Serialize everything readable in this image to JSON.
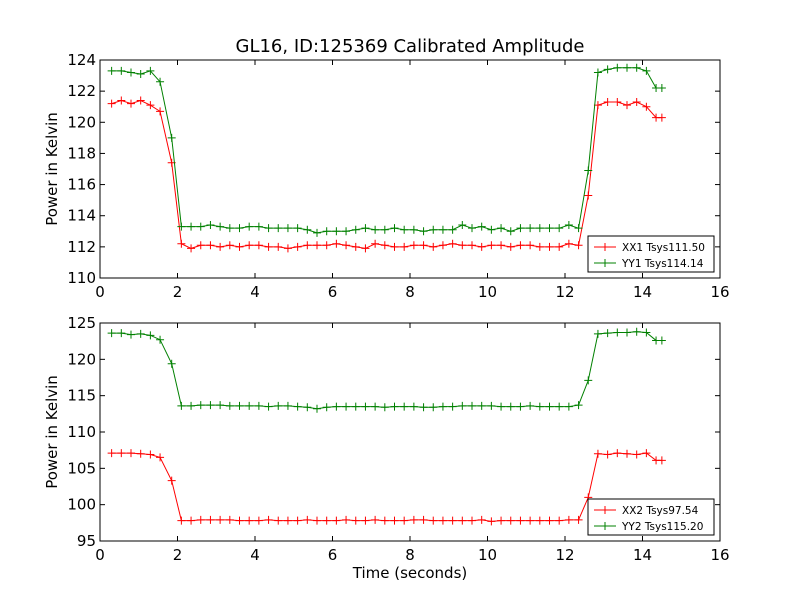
{
  "title": "GL16, ID:125369 Calibrated Amplitude",
  "chart_data": [
    {
      "type": "line",
      "ylabel": "Power in Kelvin",
      "xlabel": "",
      "xlim": [
        0,
        16
      ],
      "ylim": [
        110,
        124
      ],
      "xticks": [
        0,
        2,
        4,
        6,
        8,
        10,
        12,
        14,
        16
      ],
      "yticks": [
        110,
        112,
        114,
        116,
        118,
        120,
        122,
        124
      ],
      "legend_position": "lower-right",
      "x": [
        0.3,
        0.55,
        0.8,
        1.05,
        1.3,
        1.55,
        1.85,
        2.1,
        2.35,
        2.6,
        2.85,
        3.1,
        3.35,
        3.6,
        3.85,
        4.1,
        4.35,
        4.6,
        4.85,
        5.1,
        5.35,
        5.6,
        5.85,
        6.1,
        6.35,
        6.6,
        6.85,
        7.1,
        7.35,
        7.6,
        7.85,
        8.1,
        8.35,
        8.6,
        8.85,
        9.1,
        9.35,
        9.6,
        9.85,
        10.1,
        10.35,
        10.6,
        10.85,
        11.1,
        11.35,
        11.6,
        11.85,
        12.1,
        12.35,
        12.6,
        12.85,
        13.1,
        13.35,
        13.6,
        13.85,
        14.1,
        14.35,
        14.5
      ],
      "series": [
        {
          "name": "XX1 Tsys111.50",
          "color": "#ff0000",
          "values": [
            121.2,
            121.4,
            121.2,
            121.4,
            121.1,
            120.7,
            117.4,
            112.2,
            111.9,
            112.1,
            112.1,
            112.0,
            112.1,
            112.0,
            112.1,
            112.1,
            112.0,
            112.0,
            111.9,
            112.0,
            112.1,
            112.1,
            112.1,
            112.2,
            112.1,
            112.0,
            111.9,
            112.2,
            112.1,
            112.0,
            112.0,
            112.1,
            112.1,
            112.0,
            112.1,
            112.2,
            112.1,
            112.1,
            112.0,
            112.1,
            112.1,
            112.0,
            112.1,
            112.1,
            112.0,
            112.0,
            112.0,
            112.2,
            112.1,
            115.3,
            121.1,
            121.3,
            121.3,
            121.1,
            121.3,
            121.0,
            120.3,
            120.3
          ]
        },
        {
          "name": "YY1 Tsys114.14",
          "color": "#008000",
          "values": [
            123.3,
            123.3,
            123.2,
            123.1,
            123.3,
            122.6,
            119.0,
            113.3,
            113.3,
            113.3,
            113.4,
            113.3,
            113.2,
            113.2,
            113.3,
            113.3,
            113.2,
            113.2,
            113.2,
            113.2,
            113.1,
            112.9,
            113.0,
            113.0,
            113.0,
            113.1,
            113.2,
            113.1,
            113.1,
            113.2,
            113.1,
            113.1,
            113.0,
            113.1,
            113.1,
            113.1,
            113.4,
            113.2,
            113.3,
            113.1,
            113.2,
            113.0,
            113.2,
            113.2,
            113.2,
            113.2,
            113.2,
            113.4,
            113.2,
            116.9,
            123.2,
            123.4,
            123.5,
            123.5,
            123.5,
            123.3,
            122.2,
            122.2
          ]
        }
      ]
    },
    {
      "type": "line",
      "ylabel": "Power in Kelvin",
      "xlabel": "Time (seconds)",
      "xlim": [
        0,
        16
      ],
      "ylim": [
        95,
        125
      ],
      "xticks": [
        0,
        2,
        4,
        6,
        8,
        10,
        12,
        14,
        16
      ],
      "yticks": [
        95,
        100,
        105,
        110,
        115,
        120,
        125
      ],
      "legend_position": "lower-right",
      "x": [
        0.3,
        0.55,
        0.8,
        1.05,
        1.3,
        1.55,
        1.85,
        2.1,
        2.35,
        2.6,
        2.85,
        3.1,
        3.35,
        3.6,
        3.85,
        4.1,
        4.35,
        4.6,
        4.85,
        5.1,
        5.35,
        5.6,
        5.85,
        6.1,
        6.35,
        6.6,
        6.85,
        7.1,
        7.35,
        7.6,
        7.85,
        8.1,
        8.35,
        8.6,
        8.85,
        9.1,
        9.35,
        9.6,
        9.85,
        10.1,
        10.35,
        10.6,
        10.85,
        11.1,
        11.35,
        11.6,
        11.85,
        12.1,
        12.35,
        12.6,
        12.85,
        13.1,
        13.35,
        13.6,
        13.85,
        14.1,
        14.35,
        14.5
      ],
      "series": [
        {
          "name": "XX2 Tsys97.54",
          "color": "#ff0000",
          "values": [
            107.1,
            107.1,
            107.1,
            107.0,
            106.9,
            106.5,
            103.3,
            97.8,
            97.8,
            97.9,
            97.9,
            97.9,
            97.9,
            97.8,
            97.8,
            97.8,
            97.9,
            97.8,
            97.8,
            97.8,
            97.9,
            97.8,
            97.8,
            97.8,
            97.9,
            97.8,
            97.8,
            97.9,
            97.8,
            97.8,
            97.8,
            97.9,
            97.9,
            97.8,
            97.8,
            97.8,
            97.8,
            97.8,
            97.9,
            97.7,
            97.8,
            97.8,
            97.8,
            97.8,
            97.8,
            97.8,
            97.8,
            97.9,
            97.9,
            101.0,
            107.0,
            106.9,
            107.1,
            107.0,
            106.9,
            107.1,
            106.1,
            106.1
          ]
        },
        {
          "name": "YY2 Tsys115.20",
          "color": "#008000",
          "values": [
            123.6,
            123.6,
            123.4,
            123.5,
            123.3,
            122.7,
            119.4,
            113.6,
            113.6,
            113.7,
            113.7,
            113.7,
            113.6,
            113.6,
            113.6,
            113.6,
            113.5,
            113.6,
            113.6,
            113.5,
            113.4,
            113.2,
            113.4,
            113.5,
            113.5,
            113.5,
            113.5,
            113.5,
            113.4,
            113.5,
            113.5,
            113.5,
            113.4,
            113.4,
            113.5,
            113.5,
            113.6,
            113.6,
            113.6,
            113.6,
            113.5,
            113.5,
            113.5,
            113.6,
            113.5,
            113.5,
            113.5,
            113.5,
            113.7,
            117.1,
            123.5,
            123.6,
            123.7,
            123.7,
            123.8,
            123.7,
            122.6,
            122.6
          ]
        }
      ]
    }
  ]
}
